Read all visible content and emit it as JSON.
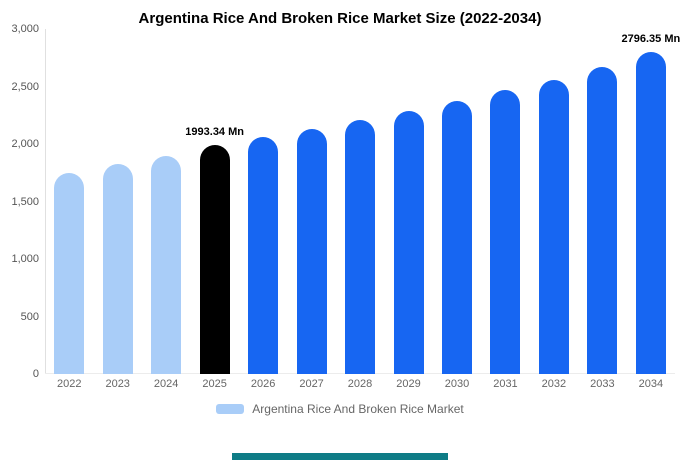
{
  "title": "Argentina Rice And Broken Rice Market Size (2022-2034)",
  "legend": {
    "label": "Argentina Rice And Broken Rice Market",
    "swatch_color": "#a9cdf8"
  },
  "colors": {
    "historical_bar": "#a9cdf8",
    "highlight_bar": "#000000",
    "forecast_bar": "#1766f2",
    "teal_strip": "#0e7c86",
    "axis_text": "#666666"
  },
  "chart_data": {
    "type": "bar",
    "title": "Argentina Rice And Broken Rice Market Size (2022-2034)",
    "xlabel": "",
    "ylabel": "",
    "ylim": [
      0,
      3000
    ],
    "grid": false,
    "legend_position": "bottom",
    "categories": [
      "2022",
      "2023",
      "2024",
      "2025",
      "2026",
      "2027",
      "2028",
      "2029",
      "2030",
      "2031",
      "2032",
      "2033",
      "2034"
    ],
    "values": [
      1751,
      1822,
      1895,
      1993.34,
      2060,
      2133,
      2210,
      2288,
      2370,
      2470,
      2558,
      2670,
      2796.35
    ],
    "bar_colors": [
      "#a9cdf8",
      "#a9cdf8",
      "#a9cdf8",
      "#000000",
      "#1766f2",
      "#1766f2",
      "#1766f2",
      "#1766f2",
      "#1766f2",
      "#1766f2",
      "#1766f2",
      "#1766f2",
      "#1766f2"
    ],
    "annotations": {
      "3": "1993.34 Mn",
      "12": "2796.35 Mn"
    },
    "ytick_labels": [
      "0",
      "500",
      "1,000",
      "1,500",
      "2,000",
      "2,500",
      "3,000"
    ],
    "ytick_values": [
      0,
      500,
      1000,
      1500,
      2000,
      2500,
      3000
    ]
  }
}
